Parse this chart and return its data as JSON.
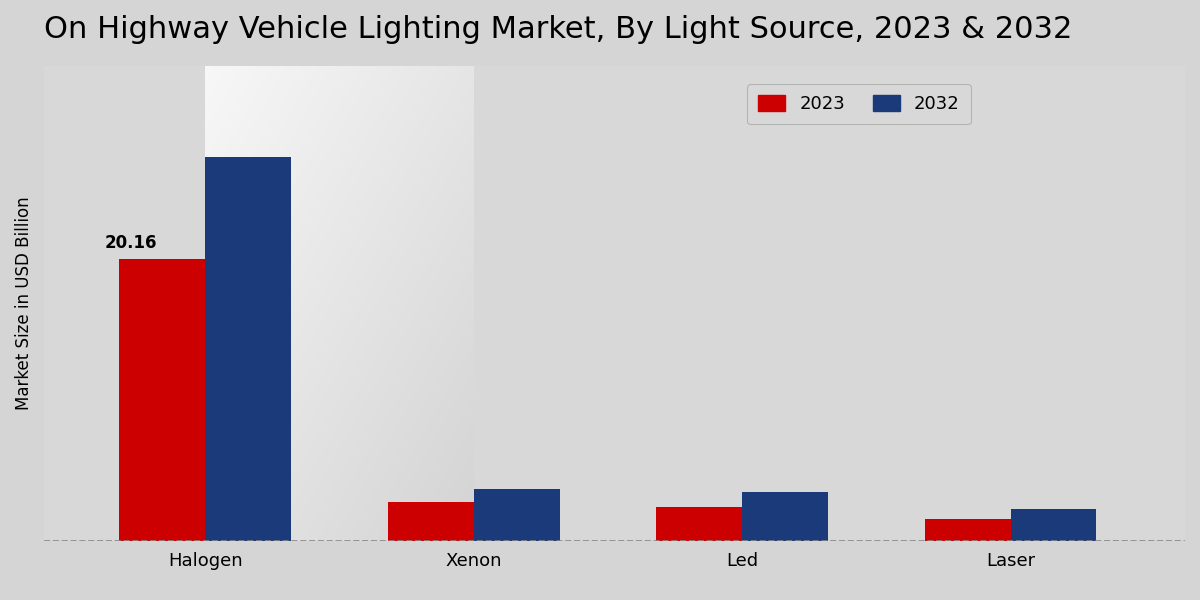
{
  "title": "On Highway Vehicle Lighting Market, By Light Source, 2023 & 2032",
  "categories": [
    "Halogen",
    "Xenon",
    "Led",
    "Laser"
  ],
  "values_2023": [
    20.16,
    2.8,
    2.4,
    1.6
  ],
  "values_2032": [
    27.5,
    3.7,
    3.5,
    2.3
  ],
  "label_2023": "20.16",
  "color_2023": "#cc0000",
  "color_2032": "#1a3a7a",
  "ylabel": "Market Size in USD Billion",
  "legend_2023": "2023",
  "legend_2032": "2032",
  "bg_color_top": "#f5f5f5",
  "bg_color_bottom": "#d8d8d8",
  "title_fontsize": 22,
  "bar_width": 0.32,
  "ylim": [
    0,
    34
  ],
  "bottom_red_bar_color": "#cc0000"
}
